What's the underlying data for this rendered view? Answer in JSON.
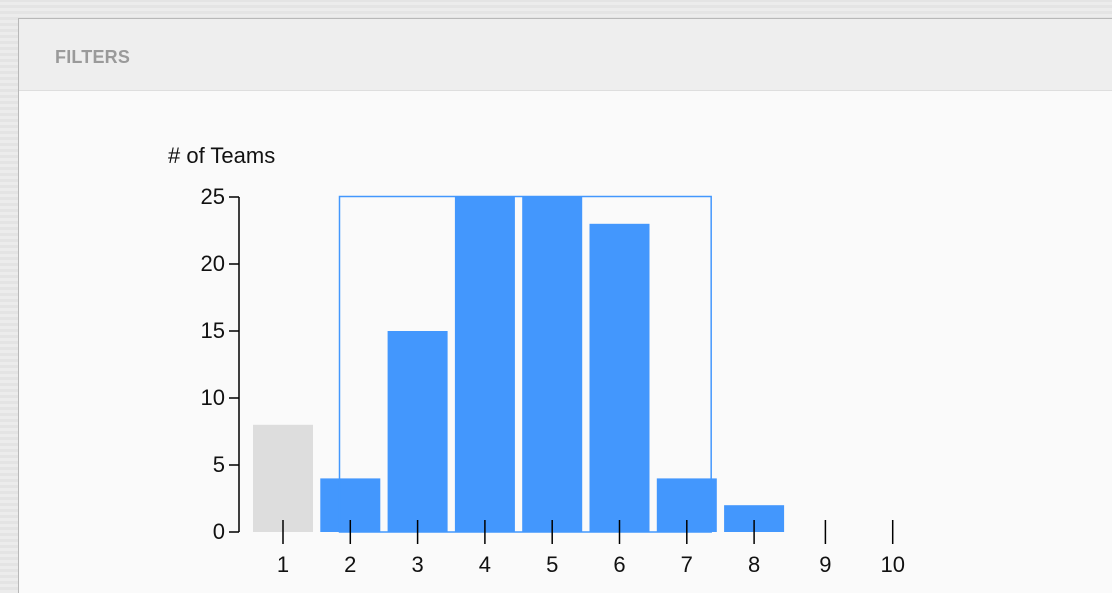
{
  "panel": {
    "title": "FILTERS"
  },
  "colors": {
    "selected": "#4397fd",
    "unselected": "#dddddd",
    "brush": "#4397fd",
    "axis": "#000000"
  },
  "chart_data": {
    "type": "bar",
    "ylabel": "# of Teams",
    "xlabel": "",
    "ylim": [
      0,
      25
    ],
    "yticks": [
      0,
      5,
      10,
      15,
      20,
      25
    ],
    "categories": [
      "1",
      "2",
      "3",
      "4",
      "5",
      "6",
      "7",
      "8",
      "9",
      "10"
    ],
    "values": [
      8,
      4,
      15,
      25,
      25,
      23,
      4,
      2,
      0,
      0
    ],
    "selected": [
      false,
      true,
      true,
      true,
      true,
      true,
      true,
      true,
      false,
      false
    ],
    "brush_range": [
      2,
      7.6
    ]
  }
}
